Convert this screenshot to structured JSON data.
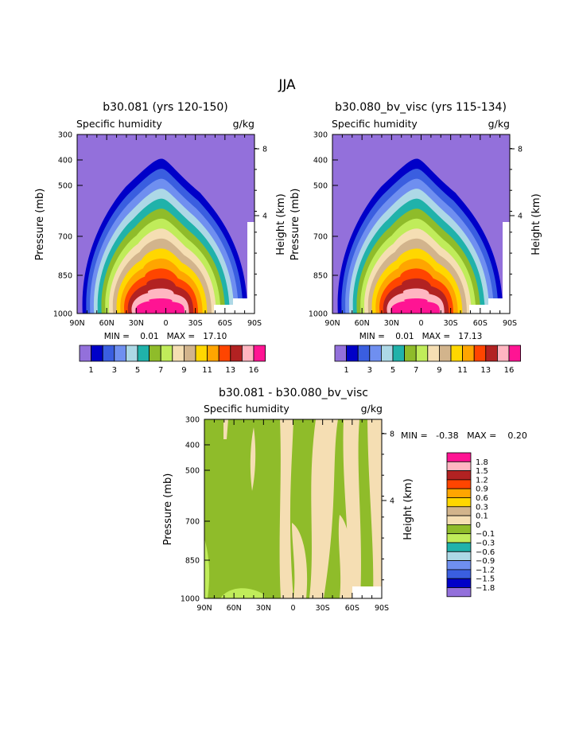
{
  "page_title": "JJA",
  "colors": {
    "abs_levels": [
      "#9370db",
      "#0000c8",
      "#3a5ee0",
      "#6f8ff0",
      "#add8e6",
      "#20b2aa",
      "#8fbc2a",
      "#c0ec5a",
      "#f5deb3",
      "#d2b48c",
      "#ffd700",
      "#ffa500",
      "#ff4500",
      "#b22222",
      "#ffb6c1",
      "#ff1493"
    ],
    "diff_levels": [
      "#9370db",
      "#0000c8",
      "#3a5ee0",
      "#6f8ff0",
      "#add8e6",
      "#20b2aa",
      "#c0ec5a",
      "#8fbc2a",
      "#f5deb3",
      "#d2b48c",
      "#ffd700",
      "#ffa500",
      "#ff4500",
      "#b22222",
      "#ffb6c1",
      "#ff1493"
    ]
  },
  "chart_data": [
    {
      "type": "contour",
      "title": "b30.081 (yrs 120-150)",
      "left_subtitle": "Specific humidity",
      "right_subtitle": "g/kg",
      "ylabel": "Pressure (mb)",
      "ylabel_right": "Height (km)",
      "x_ticks": [
        "90N",
        "60N",
        "30N",
        "0",
        "30S",
        "60S",
        "90S"
      ],
      "y_ticks": [
        "300",
        "400",
        "500",
        "700",
        "850",
        "1000"
      ],
      "y_ticks_right": [
        "8",
        "4"
      ],
      "min_max_label": "MIN =    0.01   MAX =   17.10",
      "min": 0.01,
      "max": 17.1,
      "colorbar_labels": [
        "1",
        "3",
        "5",
        "7",
        "9",
        "11",
        "13",
        "16"
      ]
    },
    {
      "type": "contour",
      "title": "b30.080_bv_visc (yrs 115-134)",
      "left_subtitle": "Specific humidity",
      "right_subtitle": "g/kg",
      "ylabel": "Pressure (mb)",
      "ylabel_right": "Height (km)",
      "x_ticks": [
        "90N",
        "60N",
        "30N",
        "0",
        "30S",
        "60S",
        "90S"
      ],
      "y_ticks": [
        "300",
        "400",
        "500",
        "700",
        "850",
        "1000"
      ],
      "y_ticks_right": [
        "8",
        "4"
      ],
      "min_max_label": "MIN =    0.01   MAX =   17.13",
      "min": 0.01,
      "max": 17.13,
      "colorbar_labels": [
        "1",
        "3",
        "5",
        "7",
        "9",
        "11",
        "13",
        "16"
      ]
    },
    {
      "type": "contour",
      "title": "b30.081 - b30.080_bv_visc",
      "left_subtitle": "Specific humidity",
      "right_subtitle": "g/kg",
      "ylabel": "Pressure (mb)",
      "ylabel_right": "Height (km)",
      "x_ticks": [
        "90N",
        "60N",
        "30N",
        "0",
        "30S",
        "60S",
        "90S"
      ],
      "y_ticks": [
        "300",
        "400",
        "500",
        "700",
        "850",
        "1000"
      ],
      "y_ticks_right": [
        "8",
        "4"
      ],
      "min_max_label": "MIN =   -0.38   MAX =    0.20",
      "min": -0.38,
      "max": 0.2,
      "colorbar_labels": [
        "1.8",
        "1.5",
        "1.2",
        "0.9",
        "0.6",
        "0.3",
        "0.1",
        "0",
        "−0.1",
        "−0.3",
        "−0.6",
        "−0.9",
        "−1.2",
        "−1.5",
        "−1.8"
      ]
    }
  ]
}
